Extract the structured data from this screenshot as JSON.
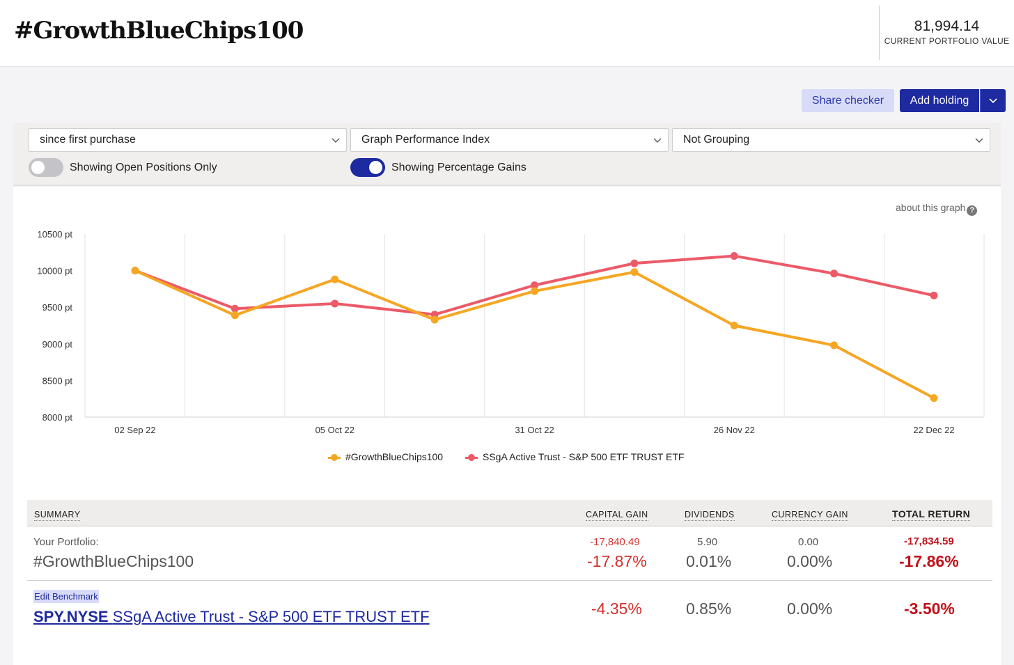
{
  "header": {
    "title": "#GrowthBlueChips100",
    "portfolio_value": "81,994.14",
    "portfolio_value_label": "CURRENT PORTFOLIO VALUE"
  },
  "toolbar": {
    "share_label": "Share checker",
    "add_label": "Add holding"
  },
  "controls": {
    "period": "since first purchase",
    "graph_type": "Graph Performance Index",
    "grouping": "Not Grouping",
    "open_positions_label": "Showing Open Positions Only",
    "percentage_label": "Showing Percentage Gains"
  },
  "about_label": "about this graph",
  "colors": {
    "portfolio": "#f5a623",
    "benchmark": "#ec5a68",
    "accent": "#1e2aa0"
  },
  "chart_data": {
    "type": "line",
    "title": "",
    "ylabel": "",
    "ylim": [
      8000,
      10500
    ],
    "yticks": [
      "10500 pt",
      "10000 pt",
      "9500 pt",
      "9000 pt",
      "8500 pt",
      "8000 pt"
    ],
    "ytick_values": [
      10500,
      10000,
      9500,
      9000,
      8500,
      8000
    ],
    "x_labels": [
      "02 Sep 22",
      "",
      "05 Oct 22",
      "",
      "31 Oct 22",
      "",
      "26 Nov 22",
      "",
      "22 Dec 22"
    ],
    "series": [
      {
        "name": "#GrowthBlueChips100",
        "values": [
          10000,
          9390,
          9880,
          9330,
          9720,
          9980,
          9250,
          8980,
          8260
        ]
      },
      {
        "name": "SSgA Active Trust - S&P 500 ETF TRUST ETF",
        "values": [
          10000,
          9480,
          9550,
          9400,
          9800,
          10100,
          10200,
          9960,
          9660
        ]
      }
    ]
  },
  "summary": {
    "headers": {
      "summary": "SUMMARY",
      "capital": "CAPITAL GAIN",
      "dividends": "DIVIDENDS",
      "currency": "CURRENCY GAIN",
      "total": "TOTAL RETURN"
    },
    "portfolio": {
      "label": "Your Portfolio:",
      "name": "#GrowthBlueChips100",
      "capital_abs": "-17,840.49",
      "capital_pct": "-17.87%",
      "dividends_abs": "5.90",
      "dividends_pct": "0.01%",
      "currency_abs": "0.00",
      "currency_pct": "0.00%",
      "total_abs": "-17,834.59",
      "total_pct": "-17.86%"
    },
    "benchmark": {
      "edit_label": "Edit Benchmark",
      "ticker": "SPY.NYSE",
      "name": "SSgA Active Trust - S&P 500 ETF TRUST ETF",
      "capital_pct": "-4.35%",
      "dividends_pct": "0.85%",
      "currency_pct": "0.00%",
      "total_pct": "-3.50%"
    }
  }
}
